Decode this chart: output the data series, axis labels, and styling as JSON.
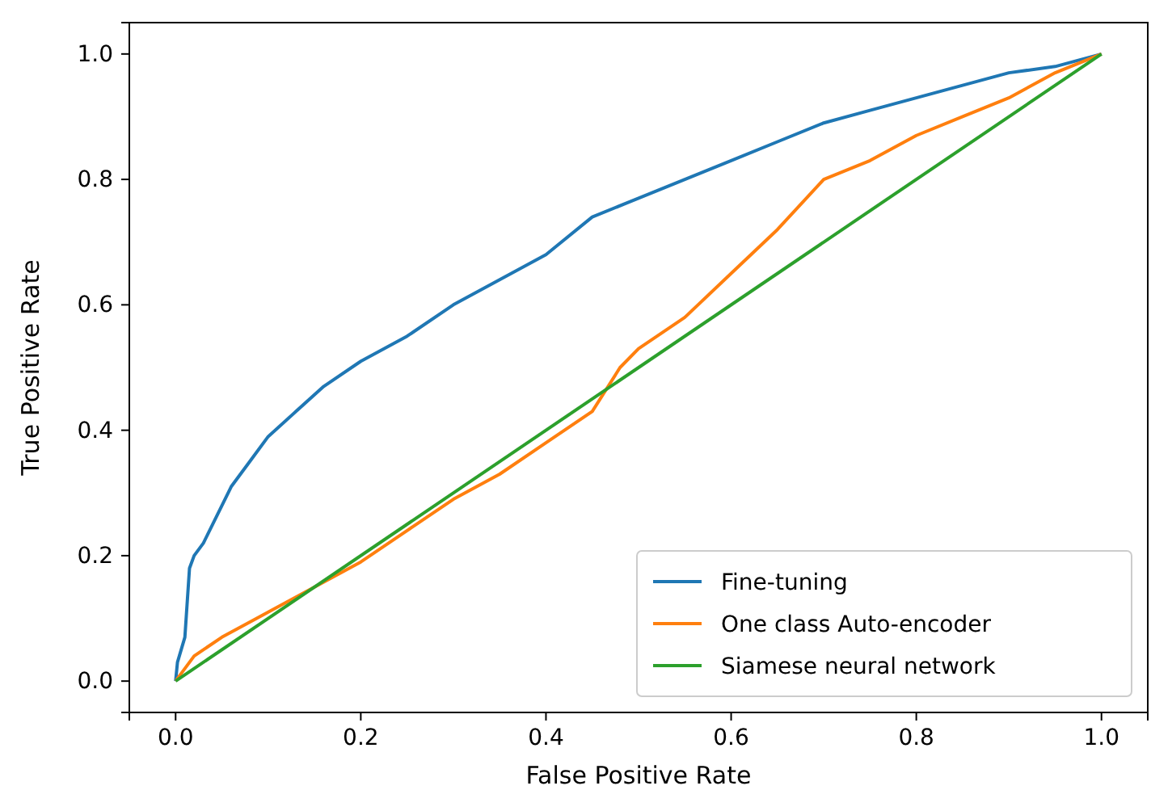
{
  "chart_data": {
    "type": "line",
    "xlabel": "False Positive Rate",
    "ylabel": "True Positive Rate",
    "xlim": [
      -0.05,
      1.05
    ],
    "ylim": [
      -0.05,
      1.05
    ],
    "xticks": [
      {
        "value": 0,
        "label": "0.0"
      },
      {
        "value": 0.2,
        "label": "0.2"
      },
      {
        "value": 0.4,
        "label": "0.4"
      },
      {
        "value": 0.6,
        "label": "0.6"
      },
      {
        "value": 0.8,
        "label": "0.8"
      },
      {
        "value": 1,
        "label": "1.0"
      }
    ],
    "yticks": [
      {
        "value": 0,
        "label": "0.0"
      },
      {
        "value": 0.2,
        "label": "0.2"
      },
      {
        "value": 0.4,
        "label": "0.4"
      },
      {
        "value": 0.6,
        "label": "0.6"
      },
      {
        "value": 0.8,
        "label": "0.8"
      },
      {
        "value": 1,
        "label": "1.0"
      }
    ],
    "grid": false,
    "legend": "bottom right",
    "line_style": "solid",
    "marker": "none",
    "series": [
      {
        "name": "Fine-tuning",
        "color": "#1f77b4",
        "x": [
          0,
          0.002,
          0.01,
          0.015,
          0.02,
          0.03,
          0.04,
          0.05,
          0.06,
          0.08,
          0.1,
          0.13,
          0.16,
          0.2,
          0.25,
          0.3,
          0.35,
          0.4,
          0.45,
          0.5,
          0.55,
          0.6,
          0.65,
          0.7,
          0.75,
          0.8,
          0.85,
          0.9,
          0.95,
          1
        ],
        "values": [
          0,
          0.03,
          0.07,
          0.18,
          0.2,
          0.22,
          0.25,
          0.28,
          0.31,
          0.35,
          0.39,
          0.43,
          0.47,
          0.51,
          0.55,
          0.6,
          0.64,
          0.68,
          0.74,
          0.77,
          0.8,
          0.83,
          0.86,
          0.89,
          0.91,
          0.93,
          0.95,
          0.97,
          0.98,
          1
        ]
      },
      {
        "name": "One class Auto-encoder",
        "color": "#ff7f0e",
        "x": [
          0,
          0.02,
          0.05,
          0.1,
          0.15,
          0.2,
          0.25,
          0.3,
          0.35,
          0.4,
          0.45,
          0.48,
          0.5,
          0.55,
          0.6,
          0.65,
          0.7,
          0.75,
          0.8,
          0.85,
          0.9,
          0.95,
          1
        ],
        "values": [
          0,
          0.04,
          0.07,
          0.11,
          0.15,
          0.19,
          0.24,
          0.29,
          0.33,
          0.38,
          0.43,
          0.5,
          0.53,
          0.58,
          0.65,
          0.72,
          0.8,
          0.83,
          0.87,
          0.9,
          0.93,
          0.97,
          1
        ]
      },
      {
        "name": "Siamese neural network",
        "color": "#2ca02c",
        "x": [
          0,
          1
        ],
        "values": [
          0,
          1
        ]
      }
    ]
  }
}
